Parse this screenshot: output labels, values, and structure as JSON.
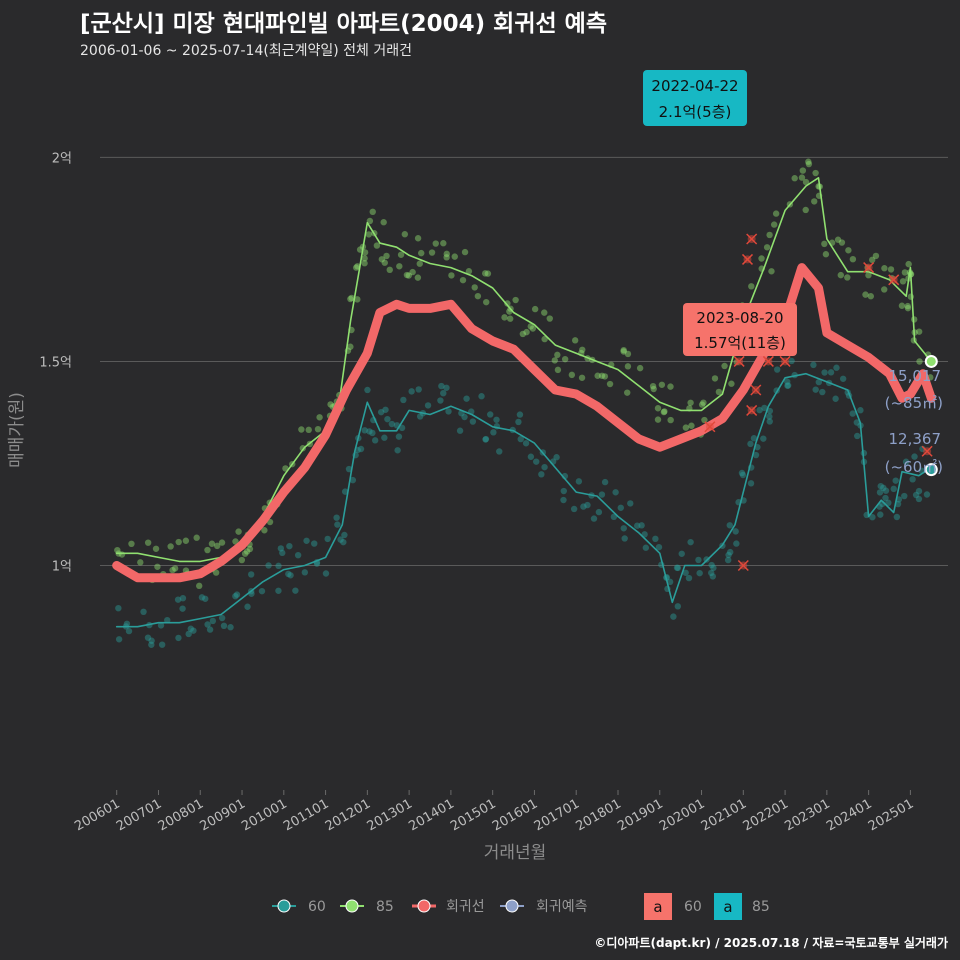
{
  "title": "[군산시] 미장 현대파인빌 아파트(2004) 회귀선 예측",
  "subtitle": "2006-01-06 ~ 2025-07-14(최근계약일) 전체 거래건",
  "credit": "©디아파트(dapt.kr) / 2025.07.18 / 자료=국토교통부 실거래가",
  "chart_data": {
    "type": "line",
    "xlabel": "거래년월",
    "ylabel": "매매가(원)",
    "ylim": [
      0.45,
      2.17
    ],
    "xlim": [
      2005.6,
      2025.9
    ],
    "yticks": [
      {
        "value": 1.0,
        "label": "1억"
      },
      {
        "value": 1.5,
        "label": "1.5억"
      },
      {
        "value": 2.0,
        "label": "2억"
      }
    ],
    "xticks": [
      {
        "value": 2006.0,
        "label": "200601"
      },
      {
        "value": 2007.0,
        "label": "200701"
      },
      {
        "value": 2008.0,
        "label": "200801"
      },
      {
        "value": 2009.0,
        "label": "200901"
      },
      {
        "value": 2010.0,
        "label": "201001"
      },
      {
        "value": 2011.0,
        "label": "201101"
      },
      {
        "value": 2012.0,
        "label": "201201"
      },
      {
        "value": 2013.0,
        "label": "201301"
      },
      {
        "value": 2014.0,
        "label": "201401"
      },
      {
        "value": 2015.0,
        "label": "201501"
      },
      {
        "value": 2016.0,
        "label": "201601"
      },
      {
        "value": 2017.0,
        "label": "201701"
      },
      {
        "value": 2018.0,
        "label": "201801"
      },
      {
        "value": 2019.0,
        "label": "201901"
      },
      {
        "value": 2020.0,
        "label": "202001"
      },
      {
        "value": 2021.0,
        "label": "202101"
      },
      {
        "value": 2022.0,
        "label": "202201"
      },
      {
        "value": 2023.0,
        "label": "202301"
      },
      {
        "value": 2024.0,
        "label": "202401"
      },
      {
        "value": 2025.0,
        "label": "202501"
      }
    ],
    "grid": true,
    "series": [
      {
        "name": "60",
        "color": "#2a9d9a",
        "points": [
          [
            2006.0,
            0.85
          ],
          [
            2006.5,
            0.85
          ],
          [
            2007.0,
            0.86
          ],
          [
            2007.5,
            0.86
          ],
          [
            2008.0,
            0.87
          ],
          [
            2008.5,
            0.88
          ],
          [
            2009.0,
            0.92
          ],
          [
            2009.5,
            0.96
          ],
          [
            2010.0,
            0.99
          ],
          [
            2010.5,
            1.0
          ],
          [
            2011.0,
            1.02
          ],
          [
            2011.4,
            1.1
          ],
          [
            2011.7,
            1.28
          ],
          [
            2012.0,
            1.4
          ],
          [
            2012.3,
            1.33
          ],
          [
            2012.7,
            1.33
          ],
          [
            2013.0,
            1.38
          ],
          [
            2013.5,
            1.37
          ],
          [
            2014.0,
            1.39
          ],
          [
            2014.5,
            1.37
          ],
          [
            2015.0,
            1.34
          ],
          [
            2015.5,
            1.33
          ],
          [
            2016.0,
            1.3
          ],
          [
            2016.5,
            1.24
          ],
          [
            2017.0,
            1.18
          ],
          [
            2017.5,
            1.17
          ],
          [
            2018.0,
            1.12
          ],
          [
            2018.5,
            1.08
          ],
          [
            2019.0,
            1.03
          ],
          [
            2019.3,
            0.91
          ],
          [
            2019.6,
            1.0
          ],
          [
            2020.0,
            1.0
          ],
          [
            2020.5,
            1.05
          ],
          [
            2020.8,
            1.1
          ],
          [
            2021.0,
            1.18
          ],
          [
            2021.3,
            1.3
          ],
          [
            2021.6,
            1.39
          ],
          [
            2022.0,
            1.46
          ],
          [
            2022.5,
            1.47
          ],
          [
            2023.0,
            1.45
          ],
          [
            2023.5,
            1.43
          ],
          [
            2023.8,
            1.35
          ],
          [
            2024.0,
            1.12
          ],
          [
            2024.3,
            1.16
          ],
          [
            2024.6,
            1.13
          ],
          [
            2024.8,
            1.23
          ],
          [
            2025.2,
            1.22
          ],
          [
            2025.5,
            1.24
          ]
        ]
      },
      {
        "name": "85",
        "color": "#90e070",
        "points": [
          [
            2006.0,
            1.03
          ],
          [
            2006.5,
            1.03
          ],
          [
            2007.0,
            1.02
          ],
          [
            2007.5,
            1.01
          ],
          [
            2008.0,
            1.01
          ],
          [
            2008.5,
            1.02
          ],
          [
            2009.0,
            1.06
          ],
          [
            2009.5,
            1.12
          ],
          [
            2010.0,
            1.22
          ],
          [
            2010.5,
            1.29
          ],
          [
            2011.0,
            1.33
          ],
          [
            2011.3,
            1.38
          ],
          [
            2011.6,
            1.6
          ],
          [
            2011.8,
            1.72
          ],
          [
            2012.0,
            1.84
          ],
          [
            2012.3,
            1.79
          ],
          [
            2012.7,
            1.78
          ],
          [
            2013.0,
            1.76
          ],
          [
            2013.5,
            1.74
          ],
          [
            2014.0,
            1.73
          ],
          [
            2014.5,
            1.71
          ],
          [
            2015.0,
            1.68
          ],
          [
            2015.5,
            1.62
          ],
          [
            2016.0,
            1.59
          ],
          [
            2016.5,
            1.54
          ],
          [
            2017.0,
            1.52
          ],
          [
            2017.5,
            1.5
          ],
          [
            2018.0,
            1.48
          ],
          [
            2018.5,
            1.44
          ],
          [
            2019.0,
            1.4
          ],
          [
            2019.5,
            1.38
          ],
          [
            2020.0,
            1.38
          ],
          [
            2020.5,
            1.42
          ],
          [
            2021.0,
            1.6
          ],
          [
            2021.5,
            1.73
          ],
          [
            2022.0,
            1.87
          ],
          [
            2022.5,
            1.93
          ],
          [
            2022.8,
            1.95
          ],
          [
            2023.0,
            1.8
          ],
          [
            2023.5,
            1.72
          ],
          [
            2024.0,
            1.72
          ],
          [
            2024.5,
            1.7
          ],
          [
            2024.9,
            1.66
          ],
          [
            2025.0,
            1.73
          ],
          [
            2025.1,
            1.55
          ],
          [
            2025.5,
            1.5
          ]
        ]
      },
      {
        "name": "회귀선",
        "color": "#f26868",
        "points": [
          [
            2006.0,
            1.0
          ],
          [
            2006.5,
            0.97
          ],
          [
            2007.0,
            0.97
          ],
          [
            2007.5,
            0.97
          ],
          [
            2008.0,
            0.98
          ],
          [
            2008.5,
            1.01
          ],
          [
            2009.0,
            1.05
          ],
          [
            2009.5,
            1.11
          ],
          [
            2010.0,
            1.18
          ],
          [
            2010.5,
            1.24
          ],
          [
            2011.0,
            1.32
          ],
          [
            2011.5,
            1.43
          ],
          [
            2012.0,
            1.52
          ],
          [
            2012.3,
            1.62
          ],
          [
            2012.7,
            1.64
          ],
          [
            2013.0,
            1.63
          ],
          [
            2013.5,
            1.63
          ],
          [
            2014.0,
            1.64
          ],
          [
            2014.5,
            1.58
          ],
          [
            2015.0,
            1.55
          ],
          [
            2015.5,
            1.53
          ],
          [
            2016.0,
            1.48
          ],
          [
            2016.5,
            1.43
          ],
          [
            2017.0,
            1.42
          ],
          [
            2017.5,
            1.39
          ],
          [
            2018.0,
            1.35
          ],
          [
            2018.5,
            1.31
          ],
          [
            2019.0,
            1.29
          ],
          [
            2019.5,
            1.31
          ],
          [
            2020.0,
            1.33
          ],
          [
            2020.5,
            1.36
          ],
          [
            2021.0,
            1.43
          ],
          [
            2021.5,
            1.52
          ],
          [
            2022.0,
            1.6
          ],
          [
            2022.4,
            1.73
          ],
          [
            2022.8,
            1.68
          ],
          [
            2023.0,
            1.57
          ],
          [
            2023.5,
            1.54
          ],
          [
            2024.0,
            1.51
          ],
          [
            2024.5,
            1.47
          ],
          [
            2024.8,
            1.41
          ],
          [
            2025.0,
            1.42
          ],
          [
            2025.3,
            1.47
          ],
          [
            2025.5,
            1.41
          ]
        ]
      }
    ],
    "end_markers": [
      {
        "series": "85",
        "x": 2025.5,
        "y": 1.5
      },
      {
        "series": "60",
        "x": 2025.5,
        "y": 1.235
      }
    ],
    "x_marks": [
      [
        2020.2,
        1.34
      ],
      [
        2020.9,
        1.5
      ],
      [
        2021.0,
        1.0
      ],
      [
        2021.1,
        1.75
      ],
      [
        2021.2,
        1.8
      ],
      [
        2021.2,
        1.38
      ],
      [
        2021.3,
        1.43
      ],
      [
        2021.6,
        1.5
      ],
      [
        2022.0,
        1.5
      ],
      [
        2024.0,
        1.73
      ],
      [
        2024.6,
        1.7
      ],
      [
        2025.4,
        1.28
      ]
    ],
    "callouts": [
      {
        "date": "2022-04-22",
        "value": "2.1억(5층)",
        "color": "#17b8c4",
        "x": 2022.3,
        "y": 2.1
      },
      {
        "date": "2023-08-20",
        "value": "1.57억(11층)",
        "color": "#f6736b",
        "x": 2023.6,
        "y": 1.57
      }
    ],
    "side_notes": [
      {
        "count": "15,017",
        "area": "(~85㎡)"
      },
      {
        "count": "12,367",
        "area": "(~60㎡)"
      }
    ],
    "legend": {
      "items": [
        "60",
        "85",
        "회귀선",
        "회귀예측"
      ],
      "colors": [
        "#2a9d9a",
        "#90e070",
        "#f26868",
        "#8ea0c8"
      ],
      "box_items": [
        {
          "letter": "a",
          "label": "60",
          "color": "#f6736b"
        },
        {
          "letter": "a",
          "label": "85",
          "color": "#17b8c4"
        }
      ],
      "position": "bottom"
    }
  }
}
